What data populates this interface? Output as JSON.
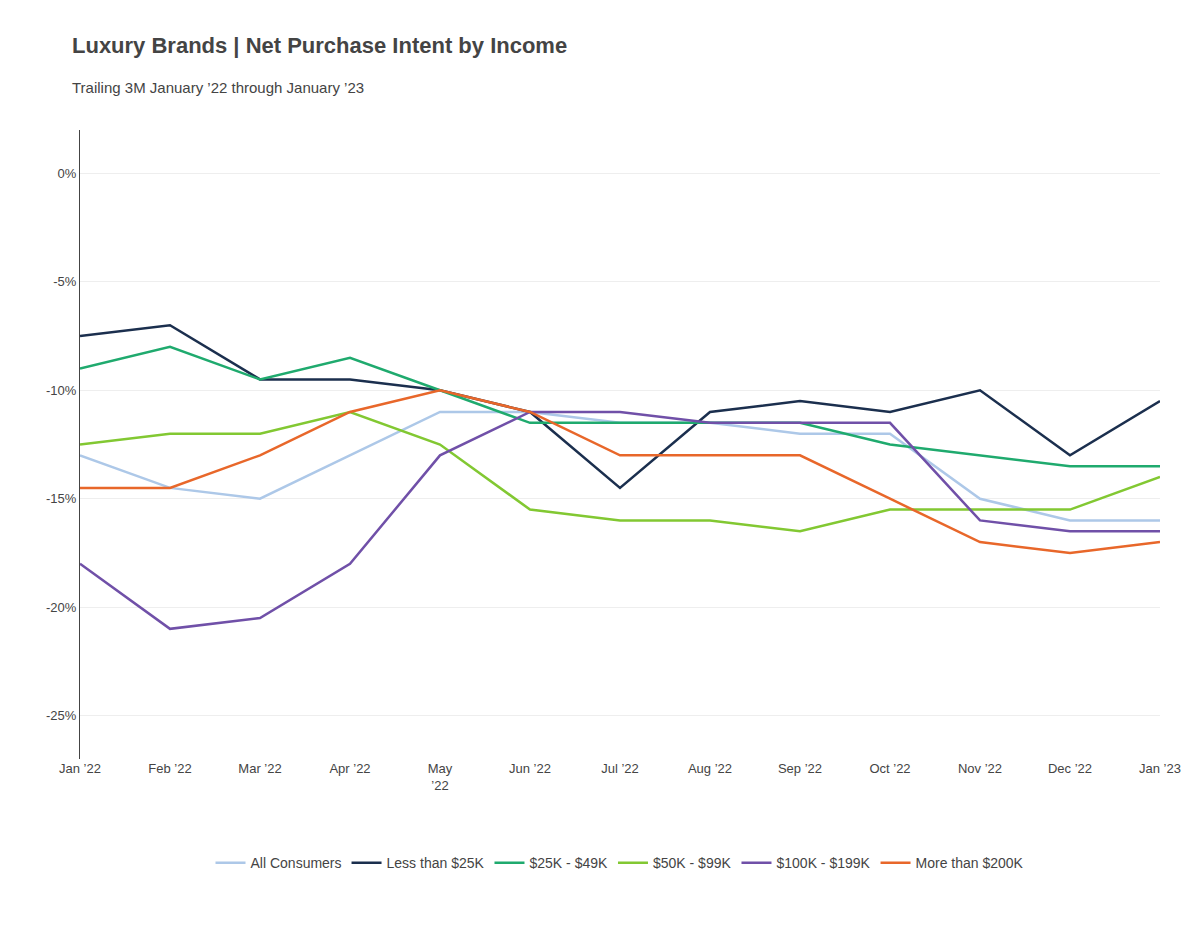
{
  "chart_data": {
    "type": "line",
    "title": "Luxury Brands | Net Purchase Intent by Income",
    "subtitle": "Trailing 3M January ’22 through January ’23",
    "categories": [
      "Jan ’22",
      "Feb ’22",
      "Mar ’22",
      "Apr ’22",
      "May\n’22",
      "Jun ’22",
      "Jul ’22",
      "Aug ’22",
      "Sep ’22",
      "Oct ’22",
      "Nov ’22",
      "Dec ’22",
      "Jan ’23"
    ],
    "series": [
      {
        "name": "All Consumers",
        "color": "#adc8e8",
        "values": [
          -13.0,
          -14.5,
          -15.0,
          -13.0,
          -11.0,
          -11.0,
          -11.5,
          -11.5,
          -12.0,
          -12.0,
          -15.0,
          -16.0,
          -16.0
        ]
      },
      {
        "name": "Less than $25K",
        "color": "#1b2f4e",
        "values": [
          -7.5,
          -7.0,
          -9.5,
          -9.5,
          -10.0,
          -11.0,
          -14.5,
          -11.0,
          -10.5,
          -11.0,
          -10.0,
          -13.0,
          -10.5
        ]
      },
      {
        "name": "$25K - $49K",
        "color": "#1faa6e",
        "values": [
          -9.0,
          -8.0,
          -9.5,
          -8.5,
          -10.0,
          -11.5,
          -11.5,
          -11.5,
          -11.5,
          -12.5,
          -13.0,
          -13.5,
          -13.5
        ]
      },
      {
        "name": "$50K - $99K",
        "color": "#82c832",
        "values": [
          -12.5,
          -12.0,
          -12.0,
          -11.0,
          -12.5,
          -15.5,
          -16.0,
          -16.0,
          -16.5,
          -15.5,
          -15.5,
          -15.5,
          -14.0
        ]
      },
      {
        "name": "$100K - $199K",
        "color": "#7050a8",
        "values": [
          -18.0,
          -21.0,
          -20.5,
          -18.0,
          -13.0,
          -11.0,
          -11.0,
          -11.5,
          -11.5,
          -11.5,
          -16.0,
          -16.5,
          -16.5
        ]
      },
      {
        "name": "More than $200K",
        "color": "#e8672a",
        "values": [
          -14.5,
          -14.5,
          -13.0,
          -11.0,
          -10.0,
          -11.0,
          -13.0,
          -13.0,
          -13.0,
          -15.0,
          -17.0,
          -17.5,
          -17.0
        ]
      }
    ],
    "ylim": [
      -27,
      2.0
    ],
    "yticks": [
      {
        "value": 0,
        "label": "0%"
      },
      {
        "value": -5,
        "label": "-5%"
      },
      {
        "value": -10,
        "label": "-10%"
      },
      {
        "value": -15,
        "label": "-15%"
      },
      {
        "value": -20,
        "label": "-20%"
      },
      {
        "value": -25,
        "label": "-25%"
      }
    ],
    "grid": "y",
    "legend": "bottom"
  }
}
